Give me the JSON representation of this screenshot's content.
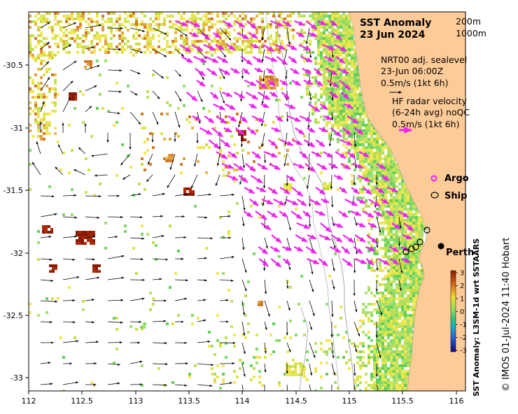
{
  "title": {
    "line1": "SST Anomaly",
    "line2": "23 Jun 2024"
  },
  "depth_legend": {
    "contour1": "200m",
    "contour2": "1000m"
  },
  "sealevel_legend": {
    "line1": "NRT00 adj. sealevel",
    "line2": "23-Jun 06:00Z",
    "line3": "0.5m/s (1kt 6h)"
  },
  "radar_legend": {
    "line1": "HF radar velocity",
    "line2": "(6-24h avg) noQC",
    "line3": "0.5m/s (1kt 6h)"
  },
  "markers": {
    "argo": "Argo",
    "ship": "Ship",
    "city": "Perth"
  },
  "colorbar": {
    "label": "SST Anomaly: L3SM-1d wrt SSTAARS",
    "ticks": [
      "3",
      "2",
      "1",
      "0",
      "-1",
      "-2",
      "-3"
    ]
  },
  "credit": "© IMOS 01-Jul-2024 11:40 Hobart",
  "axes": {
    "x_ticks": [
      "112",
      "112.5",
      "113",
      "113.5",
      "114",
      "114.5",
      "115",
      "115.5",
      "116"
    ],
    "y_ticks": [
      "-30.5",
      "-31",
      "-31.5",
      "-32",
      "-32.5",
      "-33"
    ]
  },
  "colors": {
    "land": "#fdcb98",
    "radar_arrow": "#ee22ee",
    "argo": "#ee22ee",
    "cbar_top": "#8b1a00",
    "cbar_mid": "#7fd96a",
    "cbar_bottom": "#08088a"
  }
}
